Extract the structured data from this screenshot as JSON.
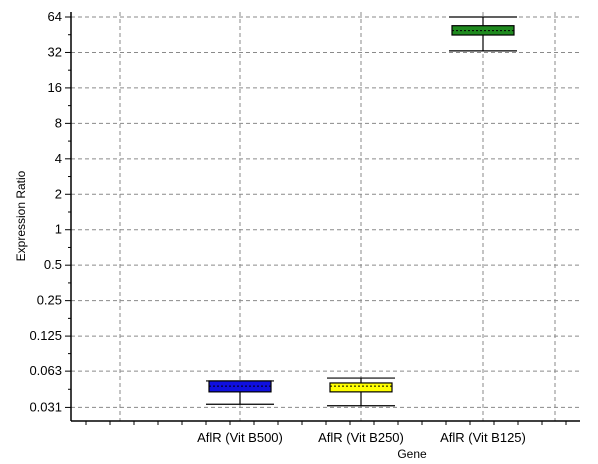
{
  "chart_data": {
    "type": "box",
    "title": "",
    "xlabel": "Gene",
    "ylabel": "Expression Ratio",
    "y_scale": "log2",
    "ylim": [
      0.024,
      68
    ],
    "y_ticks": [
      0.031,
      0.063,
      0.125,
      0.25,
      0.5,
      1,
      2,
      4,
      8,
      16,
      32,
      64
    ],
    "y_tick_labels": [
      "0.031",
      "0.063",
      "0.125",
      "0.25",
      "0.5",
      "1",
      "2",
      "4",
      "8",
      "16",
      "32",
      "64"
    ],
    "categories": [
      "AflR (Vit B500)",
      "AflR (Vit B250)",
      "AflR (Vit B125)"
    ],
    "grid": true,
    "boxes": [
      {
        "category": "AflR (Vit B500)",
        "whisker_low": 0.033,
        "q1": 0.042,
        "median": 0.047,
        "q3": 0.052,
        "whisker_high": 0.052,
        "color": "#1010e0"
      },
      {
        "category": "AflR (Vit B250)",
        "whisker_low": 0.032,
        "q1": 0.042,
        "median": 0.047,
        "q3": 0.05,
        "whisker_high": 0.055,
        "color": "#ffff00"
      },
      {
        "category": "AflR (Vit B125)",
        "whisker_low": 33,
        "q1": 45,
        "median": 49,
        "q3": 54,
        "whisker_high": 64,
        "color": "#1f8a1f"
      }
    ]
  }
}
